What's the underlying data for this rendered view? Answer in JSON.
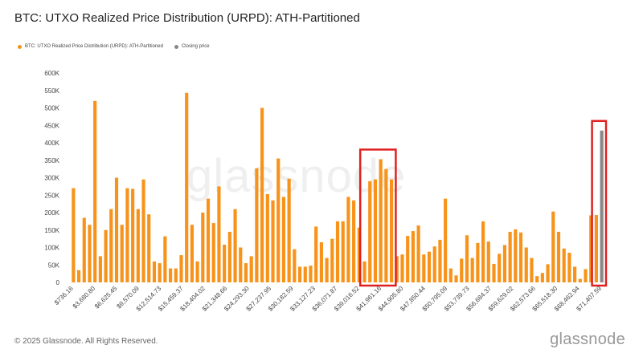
{
  "header": {
    "title": "BTC: UTXO Realized Price Distribution (URPD): ATH-Partitioned"
  },
  "legend": {
    "items": [
      {
        "label": "BTC: UTXO Realized Price Distribution (URPD): ATH-Partitioned",
        "color": "#f7931a"
      },
      {
        "label": "Closing price",
        "color": "#888888"
      }
    ]
  },
  "watermark": "glassnode",
  "footer": {
    "copyright": "© 2025 Glassnode. All Rights Reserved.",
    "brand": "glassnode"
  },
  "chart_data": {
    "type": "bar",
    "title": "BTC: UTXO Realized Price Distribution (URPD): ATH-Partitioned",
    "ylim": [
      0,
      600000
    ],
    "yticks": [
      "0",
      "50K",
      "100K",
      "150K",
      "200K",
      "250K",
      "300K",
      "350K",
      "400K",
      "450K",
      "500K",
      "550K",
      "600K"
    ],
    "ytick_values": [
      0,
      50000,
      100000,
      150000,
      200000,
      250000,
      300000,
      350000,
      400000,
      450000,
      500000,
      550000,
      600000
    ],
    "xtick_labels": [
      "$736.16",
      "$3,680.80",
      "$6,625.45",
      "$9,570.09",
      "$12,514.73",
      "$15,459.37",
      "$18,404.02",
      "$21,348.66",
      "$24,293.30",
      "$27,237.95",
      "$30,182.59",
      "$33,127.23",
      "$36,071.87",
      "$39,016.52",
      "$41,961.16",
      "$44,905.80",
      "$47,850.44",
      "$50,795.09",
      "$53,739.73",
      "$56,684.37",
      "$59,629.02",
      "$62,573.66",
      "$65,518.30",
      "$68,462.94",
      "$71,407.59"
    ],
    "grid": false,
    "legend_position": "top-left",
    "series": [
      {
        "name": "BTC: UTXO Realized Price Distribution (URPD): ATH-Partitioned",
        "color": "#f7931a",
        "values": [
          270000,
          35000,
          185000,
          165000,
          520000,
          75000,
          150000,
          210000,
          300000,
          165000,
          270000,
          268000,
          210000,
          295000,
          195000,
          60000,
          55000,
          132000,
          40000,
          40000,
          78000,
          543000,
          165000,
          60000,
          200000,
          240000,
          170000,
          275000,
          108000,
          145000,
          210000,
          100000,
          55000,
          75000,
          327000,
          500000,
          253000,
          235000,
          355000,
          245000,
          297000,
          95000,
          45000,
          45000,
          48000,
          160000,
          115000,
          70000,
          125000,
          175000,
          175000,
          245000,
          235000,
          157000,
          60000,
          290000,
          295000,
          353000,
          325000,
          295000,
          75000,
          80000,
          133000,
          147000,
          163000,
          80000,
          88000,
          103000,
          122000,
          240000,
          40000,
          20000,
          68000,
          135000,
          70000,
          113000,
          175000,
          117000,
          53000,
          82000,
          107000,
          145000,
          152000,
          143000,
          100000,
          70000,
          18000,
          27000,
          52000,
          203000,
          145000,
          97000,
          85000,
          45000,
          10000,
          38000,
          192000,
          193000,
          0
        ]
      },
      {
        "name": "Closing price",
        "color": "#888888",
        "values": [
          0,
          0,
          0,
          0,
          0,
          0,
          0,
          0,
          0,
          0,
          0,
          0,
          0,
          0,
          0,
          0,
          0,
          0,
          0,
          0,
          0,
          0,
          0,
          0,
          0,
          0,
          0,
          0,
          0,
          0,
          0,
          0,
          0,
          0,
          0,
          0,
          0,
          0,
          0,
          0,
          0,
          0,
          0,
          0,
          0,
          0,
          0,
          0,
          0,
          0,
          0,
          0,
          0,
          0,
          0,
          0,
          0,
          0,
          0,
          0,
          0,
          0,
          0,
          0,
          0,
          0,
          0,
          0,
          0,
          0,
          0,
          0,
          0,
          0,
          0,
          0,
          0,
          0,
          0,
          0,
          0,
          0,
          0,
          0,
          0,
          0,
          0,
          0,
          0,
          0,
          0,
          0,
          0,
          0,
          0,
          0,
          0,
          0,
          435000
        ]
      }
    ],
    "highlight_color": "#e02020"
  }
}
